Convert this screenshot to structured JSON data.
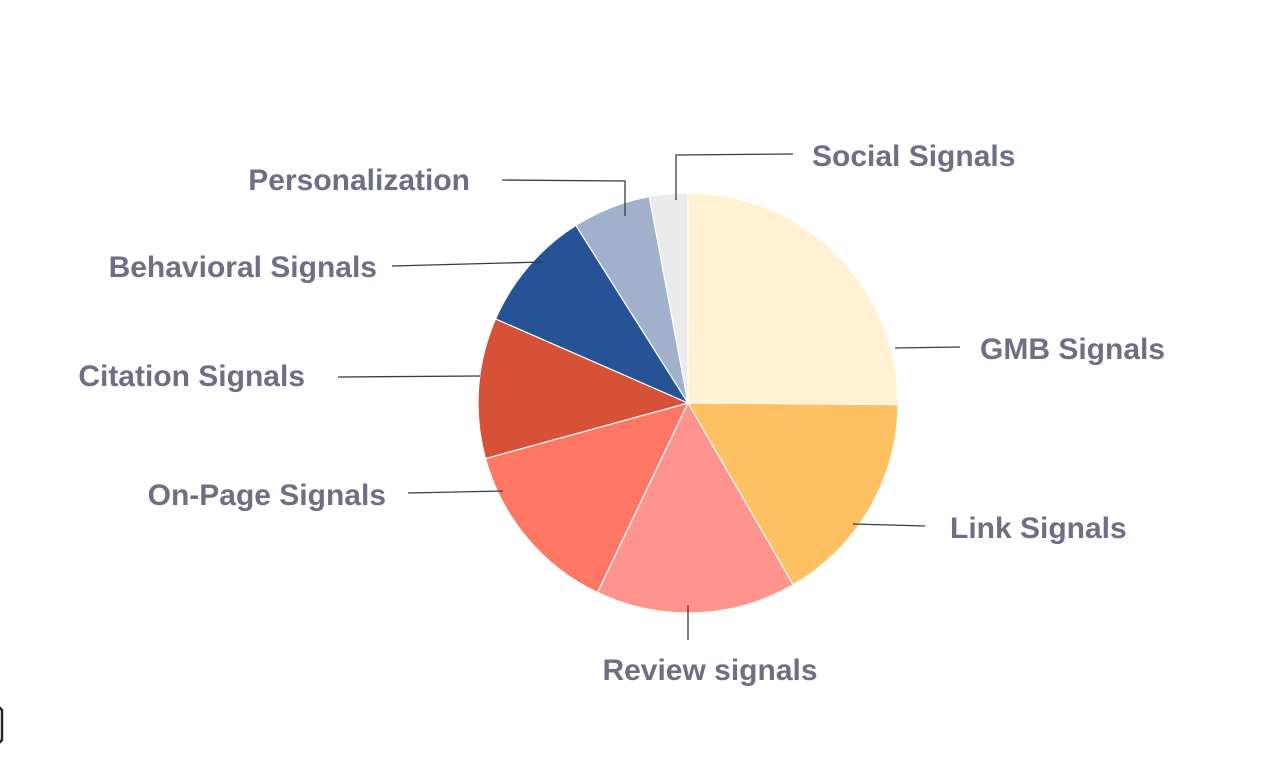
{
  "chart_data": {
    "type": "pie",
    "start_angle_deg": 0,
    "direction": "clockwise",
    "label_color": "#6e6e85",
    "slices": [
      {
        "label": "GMB Signals",
        "value": 25.12,
        "color": "#fff1d2"
      },
      {
        "label": "Link Signals",
        "value": 16.53,
        "color": "#fec060"
      },
      {
        "label": "Review signals",
        "value": 15.44,
        "color": "#ff948e"
      },
      {
        "label": "On-Page Signals",
        "value": 13.64,
        "color": "#fe7664"
      },
      {
        "label": "Citation Signals",
        "value": 10.82,
        "color": "#d75138"
      },
      {
        "label": "Behavioral Signals",
        "value": 9.48,
        "color": "#265396"
      },
      {
        "label": "Personalization",
        "value": 6.01,
        "color": "#a1b1cb"
      },
      {
        "label": "Social Signals",
        "value": 2.95,
        "color": "#ebebeb"
      }
    ]
  }
}
